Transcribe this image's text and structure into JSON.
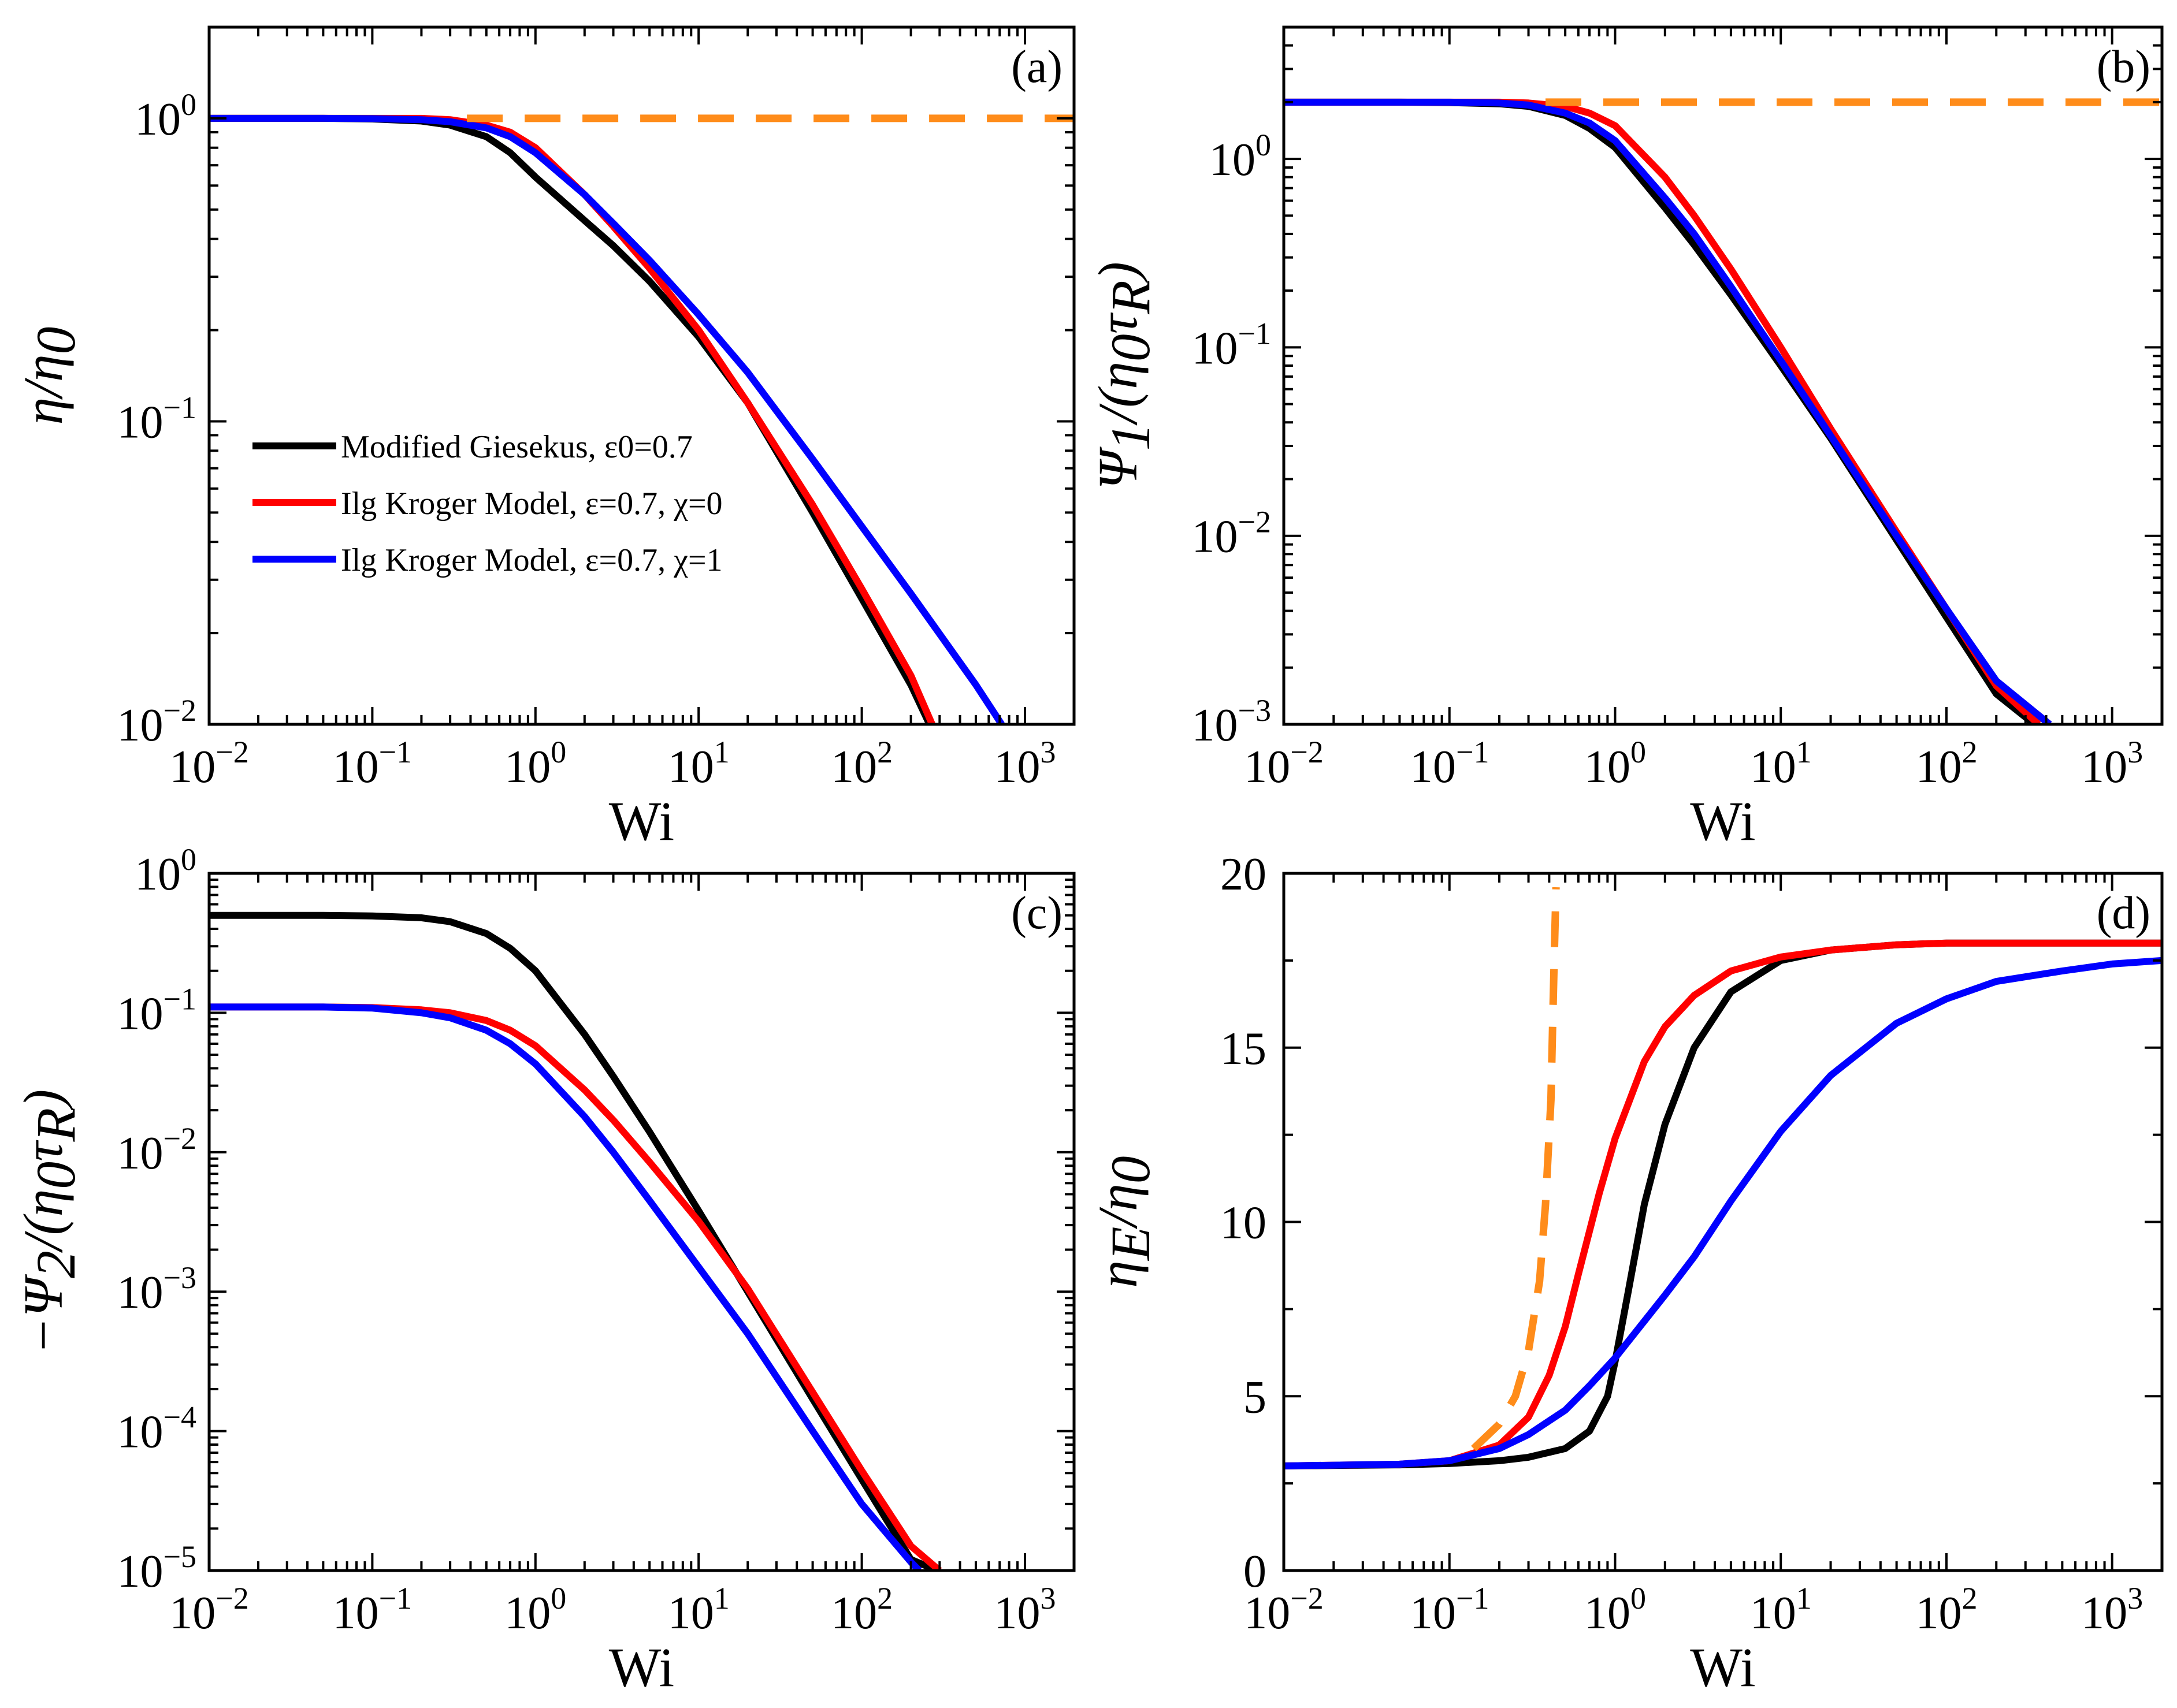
{
  "figure": {
    "series_colors": {
      "Modified Giesekus": "#000000",
      "Ilg Kroger chi=0": "#ff0000",
      "Ilg Kroger chi=1": "#0000ff",
      "reference dashed": "#ff8c1a"
    }
  },
  "chart_data": [
    {
      "panel": "(a)",
      "type": "line",
      "xscale": "log",
      "yscale": "log",
      "xlim": [
        0.01,
        2000
      ],
      "ylim": [
        0.01,
        2
      ],
      "xlabel": "Wi",
      "ylabel": "η/η0",
      "ylabel_parts": {
        "main": "η/η",
        "sub": "0"
      },
      "xticks": [
        {
          "base": "10",
          "exp": "−2",
          "v": 0.01
        },
        {
          "base": "10",
          "exp": "−1",
          "v": 0.1
        },
        {
          "base": "10",
          "exp": "0",
          "v": 1
        },
        {
          "base": "10",
          "exp": "1",
          "v": 10
        },
        {
          "base": "10",
          "exp": "2",
          "v": 100
        },
        {
          "base": "10",
          "exp": "3",
          "v": 1000
        }
      ],
      "yticks": [
        {
          "base": "10",
          "exp": "−2",
          "v": 0.01
        },
        {
          "base": "10",
          "exp": "−1",
          "v": 0.1
        },
        {
          "base": "10",
          "exp": "0",
          "v": 1
        }
      ],
      "legend": {
        "placement": "center-left",
        "entries": [
          {
            "text": "Modified Giesekus, ε0=0.7",
            "color": "#000000"
          },
          {
            "text": "Ilg Kroger Model, ε=0.7, χ=0",
            "color": "#ff0000"
          },
          {
            "text": "Ilg Kroger Model, ε=0.7, χ=1",
            "color": "#0000ff"
          }
        ]
      },
      "series": [
        {
          "color": "#000000",
          "style": "solid",
          "x": [
            0.01,
            0.05,
            0.1,
            0.2,
            0.3,
            0.5,
            0.7,
            1,
            2,
            3,
            5,
            10,
            20,
            50,
            100,
            200,
            260
          ],
          "y": [
            1.0,
            1.0,
            0.995,
            0.98,
            0.95,
            0.87,
            0.77,
            0.64,
            0.46,
            0.38,
            0.29,
            0.19,
            0.115,
            0.05,
            0.026,
            0.0135,
            0.01
          ]
        },
        {
          "color": "#ff0000",
          "style": "solid",
          "x": [
            0.01,
            0.05,
            0.1,
            0.2,
            0.3,
            0.5,
            0.7,
            1,
            2,
            3,
            5,
            10,
            20,
            50,
            100,
            200,
            270
          ],
          "y": [
            1.0,
            1.0,
            1.0,
            1.0,
            0.99,
            0.95,
            0.9,
            0.8,
            0.56,
            0.44,
            0.32,
            0.2,
            0.115,
            0.053,
            0.028,
            0.0145,
            0.01
          ]
        },
        {
          "color": "#0000ff",
          "style": "solid",
          "x": [
            0.01,
            0.05,
            0.1,
            0.2,
            0.3,
            0.5,
            0.7,
            1,
            2,
            3,
            5,
            10,
            20,
            50,
            100,
            200,
            500,
            720
          ],
          "y": [
            1.0,
            1.0,
            0.998,
            0.99,
            0.975,
            0.93,
            0.87,
            0.77,
            0.56,
            0.45,
            0.34,
            0.225,
            0.145,
            0.075,
            0.045,
            0.027,
            0.0135,
            0.01
          ]
        },
        {
          "color": "#ff8c1a",
          "style": "dashed",
          "x": [
            0.38,
            2000
          ],
          "y": [
            1.0,
            1.0
          ]
        }
      ]
    },
    {
      "panel": "(b)",
      "type": "line",
      "xscale": "log",
      "yscale": "log",
      "xlim": [
        0.01,
        2000
      ],
      "ylim": [
        0.001,
        5
      ],
      "xlabel": "Wi",
      "ylabel": "Ψ1/(η0τR)",
      "ylabel_parts": {
        "a": "Ψ",
        "a_sub": "1",
        "b": "/(η",
        "b_sub": "0",
        "c": "τ",
        "c_sub": "R",
        "d": ")"
      },
      "xticks": [
        {
          "base": "10",
          "exp": "−2",
          "v": 0.01
        },
        {
          "base": "10",
          "exp": "−1",
          "v": 0.1
        },
        {
          "base": "10",
          "exp": "0",
          "v": 1
        },
        {
          "base": "10",
          "exp": "1",
          "v": 10
        },
        {
          "base": "10",
          "exp": "2",
          "v": 100
        },
        {
          "base": "10",
          "exp": "3",
          "v": 1000
        }
      ],
      "yticks": [
        {
          "base": "10",
          "exp": "−3",
          "v": 0.001
        },
        {
          "base": "10",
          "exp": "−2",
          "v": 0.01
        },
        {
          "base": "10",
          "exp": "−1",
          "v": 0.1
        },
        {
          "base": "10",
          "exp": "0",
          "v": 1
        }
      ],
      "series": [
        {
          "color": "#000000",
          "style": "solid",
          "x": [
            0.01,
            0.05,
            0.1,
            0.2,
            0.3,
            0.5,
            0.7,
            1,
            2,
            3,
            5,
            10,
            20,
            50,
            100,
            200,
            340
          ],
          "y": [
            2.0,
            2.0,
            1.99,
            1.96,
            1.9,
            1.7,
            1.45,
            1.15,
            0.55,
            0.35,
            0.19,
            0.08,
            0.033,
            0.0095,
            0.0037,
            0.00145,
            0.001
          ]
        },
        {
          "color": "#ff0000",
          "style": "solid",
          "x": [
            0.01,
            0.05,
            0.1,
            0.2,
            0.3,
            0.5,
            0.7,
            1,
            2,
            3,
            5,
            10,
            20,
            50,
            100,
            200,
            360
          ],
          "y": [
            2.0,
            2.0,
            2.0,
            2.0,
            1.98,
            1.9,
            1.75,
            1.5,
            0.8,
            0.5,
            0.26,
            0.1,
            0.037,
            0.0105,
            0.0041,
            0.0016,
            0.001
          ]
        },
        {
          "color": "#0000ff",
          "style": "solid",
          "x": [
            0.01,
            0.05,
            0.1,
            0.2,
            0.3,
            0.5,
            0.7,
            1,
            2,
            3,
            5,
            10,
            20,
            50,
            100,
            200,
            420
          ],
          "y": [
            2.0,
            2.0,
            2.0,
            1.98,
            1.93,
            1.75,
            1.55,
            1.25,
            0.62,
            0.4,
            0.21,
            0.085,
            0.034,
            0.01,
            0.0041,
            0.0017,
            0.001
          ]
        },
        {
          "color": "#ff8c1a",
          "style": "dashed",
          "x": [
            0.38,
            2000
          ],
          "y": [
            2.0,
            2.0
          ]
        }
      ]
    },
    {
      "panel": "(c)",
      "type": "line",
      "xscale": "log",
      "yscale": "log",
      "xlim": [
        0.01,
        2000
      ],
      "ylim": [
        1e-05,
        1
      ],
      "xlabel": "Wi",
      "ylabel": "−Ψ2/(η0τR)",
      "ylabel_parts": {
        "a": "−Ψ",
        "a_sub": "2",
        "b": "/(η",
        "b_sub": "0",
        "c": "τ",
        "c_sub": "R",
        "d": ")"
      },
      "xticks": [
        {
          "base": "10",
          "exp": "−2",
          "v": 0.01
        },
        {
          "base": "10",
          "exp": "−1",
          "v": 0.1
        },
        {
          "base": "10",
          "exp": "0",
          "v": 1
        },
        {
          "base": "10",
          "exp": "1",
          "v": 10
        },
        {
          "base": "10",
          "exp": "2",
          "v": 100
        },
        {
          "base": "10",
          "exp": "3",
          "v": 1000
        }
      ],
      "yticks": [
        {
          "base": "10",
          "exp": "−5",
          "v": 1e-05
        },
        {
          "base": "10",
          "exp": "−4",
          "v": 0.0001
        },
        {
          "base": "10",
          "exp": "−3",
          "v": 0.001
        },
        {
          "base": "10",
          "exp": "−2",
          "v": 0.01
        },
        {
          "base": "10",
          "exp": "−1",
          "v": 0.1
        },
        {
          "base": "10",
          "exp": "0",
          "v": 1
        }
      ],
      "series": [
        {
          "color": "#000000",
          "style": "solid",
          "x": [
            0.01,
            0.05,
            0.1,
            0.2,
            0.3,
            0.5,
            0.7,
            1,
            2,
            3,
            5,
            10,
            20,
            50,
            100,
            200,
            290
          ],
          "y": [
            0.5,
            0.5,
            0.495,
            0.48,
            0.45,
            0.37,
            0.29,
            0.2,
            0.07,
            0.035,
            0.014,
            0.0038,
            0.001,
            0.00017,
            4.5e-05,
            1.2e-05,
            1e-05
          ]
        },
        {
          "color": "#ff0000",
          "style": "solid",
          "x": [
            0.01,
            0.05,
            0.1,
            0.2,
            0.3,
            0.5,
            0.7,
            1,
            2,
            3,
            5,
            10,
            20,
            50,
            100,
            200,
            300
          ],
          "y": [
            0.11,
            0.11,
            0.109,
            0.105,
            0.1,
            0.088,
            0.075,
            0.058,
            0.028,
            0.017,
            0.0085,
            0.0032,
            0.00105,
            0.00019,
            5.2e-05,
            1.5e-05,
            1e-05
          ]
        },
        {
          "color": "#0000ff",
          "style": "solid",
          "x": [
            0.01,
            0.05,
            0.1,
            0.2,
            0.3,
            0.5,
            0.7,
            1,
            2,
            3,
            5,
            10,
            20,
            50,
            100,
            200,
            225
          ],
          "y": [
            0.11,
            0.11,
            0.108,
            0.1,
            0.092,
            0.075,
            0.06,
            0.043,
            0.018,
            0.01,
            0.0045,
            0.0015,
            0.0005,
            0.0001,
            3e-05,
            1.15e-05,
            1e-05
          ]
        }
      ]
    },
    {
      "panel": "(d)",
      "type": "line",
      "xscale": "log",
      "yscale": "linear",
      "xlim": [
        0.01,
        2000
      ],
      "ylim": [
        0,
        20
      ],
      "xlabel": "Wi",
      "ylabel": "ηE/η0",
      "ylabel_parts": {
        "a": "η",
        "a_sub": "E",
        "b": "/η",
        "b_sub": "0"
      },
      "xticks": [
        {
          "base": "10",
          "exp": "−2",
          "v": 0.01
        },
        {
          "base": "10",
          "exp": "−1",
          "v": 0.1
        },
        {
          "base": "10",
          "exp": "0",
          "v": 1
        },
        {
          "base": "10",
          "exp": "1",
          "v": 10
        },
        {
          "base": "10",
          "exp": "2",
          "v": 100
        },
        {
          "base": "10",
          "exp": "3",
          "v": 1000
        }
      ],
      "yticks": [
        {
          "label": "0",
          "v": 0
        },
        {
          "label": "5",
          "v": 5
        },
        {
          "label": "10",
          "v": 10
        },
        {
          "label": "15",
          "v": 15
        },
        {
          "label": "20",
          "v": 20
        }
      ],
      "series": [
        {
          "color": "#000000",
          "style": "solid",
          "x": [
            0.01,
            0.05,
            0.1,
            0.2,
            0.3,
            0.5,
            0.7,
            0.9,
            1.0,
            1.2,
            1.5,
            2,
            3,
            5,
            10,
            20,
            50,
            100,
            500,
            2000
          ],
          "y": [
            3.0,
            3.03,
            3.07,
            3.15,
            3.25,
            3.5,
            4.0,
            5.0,
            6.0,
            8.0,
            10.5,
            12.8,
            15.0,
            16.6,
            17.5,
            17.8,
            17.95,
            18.0,
            18.0,
            18.0
          ]
        },
        {
          "color": "#ff0000",
          "style": "solid",
          "x": [
            0.01,
            0.05,
            0.1,
            0.2,
            0.3,
            0.4,
            0.5,
            0.6,
            0.8,
            1.0,
            1.5,
            2,
            3,
            5,
            10,
            20,
            50,
            100,
            500,
            2000
          ],
          "y": [
            3.0,
            3.05,
            3.15,
            3.6,
            4.4,
            5.6,
            7.0,
            8.5,
            10.8,
            12.4,
            14.6,
            15.6,
            16.5,
            17.2,
            17.6,
            17.8,
            17.95,
            18.0,
            18.0,
            18.0
          ]
        },
        {
          "color": "#0000ff",
          "style": "solid",
          "x": [
            0.01,
            0.05,
            0.1,
            0.2,
            0.3,
            0.5,
            0.7,
            1,
            2,
            3,
            5,
            10,
            20,
            50,
            100,
            200,
            500,
            1000,
            2000
          ],
          "y": [
            3.0,
            3.05,
            3.15,
            3.5,
            3.9,
            4.6,
            5.3,
            6.1,
            7.9,
            9.0,
            10.6,
            12.6,
            14.2,
            15.7,
            16.4,
            16.9,
            17.2,
            17.4,
            17.5
          ]
        },
        {
          "color": "#ff8c1a",
          "style": "dashed",
          "x": [
            0.14,
            0.2,
            0.25,
            0.3,
            0.35,
            0.38,
            0.41,
            0.42,
            0.43,
            0.44
          ],
          "y": [
            3.5,
            4.2,
            5.0,
            6.3,
            8.3,
            10.5,
            13.5,
            15.7,
            17.8,
            19.6
          ]
        }
      ]
    }
  ]
}
